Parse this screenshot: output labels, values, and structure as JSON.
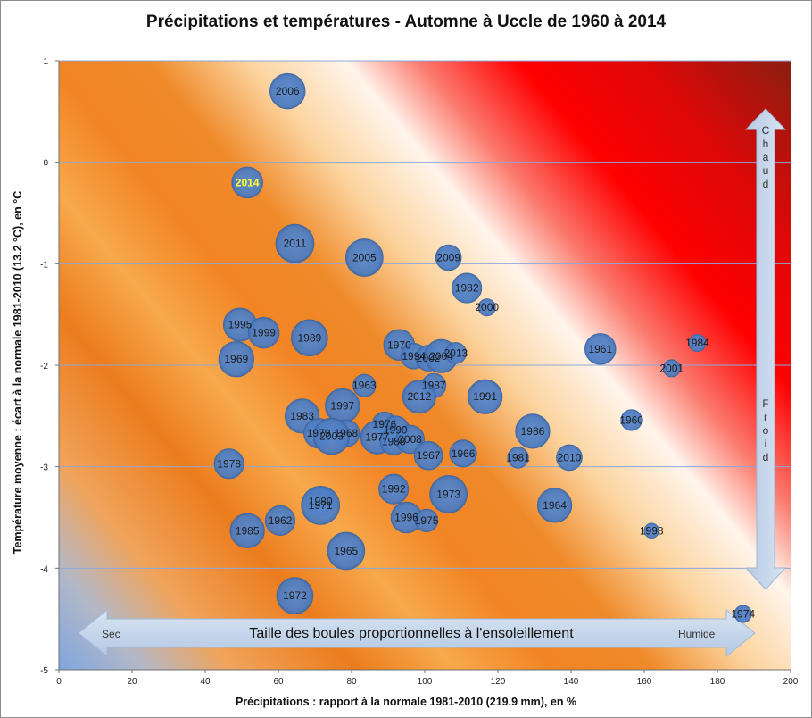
{
  "chart_data": {
    "type": "scatter",
    "subtype": "bubble",
    "title": "Précipitations et températures - Automne à Uccle de 1960 à 2014",
    "xlabel": "Précipitations : rapport à la normale 1981-2010 (219.9 mm), en %",
    "ylabel": "Température moyenne : écart à la normale 1981-2010 (13.2 °C), en °C",
    "xlim": [
      0,
      200
    ],
    "ylim": [
      -5,
      1
    ],
    "xticks": [
      "0",
      "20",
      "40",
      "60",
      "80",
      "100",
      "120",
      "140",
      "160",
      "180",
      "200"
    ],
    "yticks": [
      "-5",
      "-4",
      "-3",
      "-2",
      "-1",
      "0",
      "1"
    ],
    "horizontal_gridlines": true,
    "highlight_label": "2014",
    "bubble_color": "#4f7fc4",
    "highlight_color": "#ffff33",
    "points": [
      {
        "label": "2006",
        "x": 62.5,
        "y": 0.7,
        "size": 0.85
      },
      {
        "label": "2014",
        "x": 51.5,
        "y": -0.2,
        "size": 0.65
      },
      {
        "label": "2011",
        "x": 64.5,
        "y": -0.8,
        "size": 1.0
      },
      {
        "label": "2005",
        "x": 83.5,
        "y": -0.94,
        "size": 0.95
      },
      {
        "label": "2009",
        "x": 106.5,
        "y": -0.94,
        "size": 0.45
      },
      {
        "label": "1982",
        "x": 111.5,
        "y": -1.24,
        "size": 0.6
      },
      {
        "label": "2000",
        "x": 117,
        "y": -1.43,
        "size": 0.2
      },
      {
        "label": "1995",
        "x": 49.5,
        "y": -1.6,
        "size": 0.75
      },
      {
        "label": "1999",
        "x": 56,
        "y": -1.68,
        "size": 0.65
      },
      {
        "label": "1989",
        "x": 68.5,
        "y": -1.73,
        "size": 0.9
      },
      {
        "label": "1970",
        "x": 93,
        "y": -1.8,
        "size": 0.65
      },
      {
        "label": "1994",
        "x": 97,
        "y": -1.91,
        "size": 0.45
      },
      {
        "label": "2002",
        "x": 101,
        "y": -1.93,
        "size": 0.45
      },
      {
        "label": "2004",
        "x": 104.5,
        "y": -1.91,
        "size": 0.75
      },
      {
        "label": "2013",
        "x": 108.5,
        "y": -1.88,
        "size": 0.3
      },
      {
        "label": "1961",
        "x": 148,
        "y": -1.84,
        "size": 0.65
      },
      {
        "label": "1984",
        "x": 174.5,
        "y": -1.78,
        "size": 0.2
      },
      {
        "label": "1969",
        "x": 48.5,
        "y": -1.94,
        "size": 0.85
      },
      {
        "label": "2001",
        "x": 167.5,
        "y": -2.03,
        "size": 0.2
      },
      {
        "label": "1963",
        "x": 83.5,
        "y": -2.2,
        "size": 0.35
      },
      {
        "label": "1987",
        "x": 102.5,
        "y": -2.2,
        "size": 0.4
      },
      {
        "label": "2012",
        "x": 98.5,
        "y": -2.31,
        "size": 0.75
      },
      {
        "label": "1991",
        "x": 116.5,
        "y": -2.31,
        "size": 0.8
      },
      {
        "label": "1997",
        "x": 77.5,
        "y": -2.4,
        "size": 0.8
      },
      {
        "label": "1983",
        "x": 66.5,
        "y": -2.5,
        "size": 0.8
      },
      {
        "label": "1976",
        "x": 89,
        "y": -2.58,
        "size": 0.4
      },
      {
        "label": "1990",
        "x": 92,
        "y": -2.64,
        "size": 0.55
      },
      {
        "label": "1960",
        "x": 156.5,
        "y": -2.54,
        "size": 0.3
      },
      {
        "label": "1986",
        "x": 129.5,
        "y": -2.65,
        "size": 0.8
      },
      {
        "label": "1979",
        "x": 71,
        "y": -2.67,
        "size": 0.6
      },
      {
        "label": "1968",
        "x": 78.5,
        "y": -2.67,
        "size": 0.5
      },
      {
        "label": "2003",
        "x": 74.5,
        "y": -2.7,
        "size": 0.9
      },
      {
        "label": "1977",
        "x": 87,
        "y": -2.71,
        "size": 0.75
      },
      {
        "label": "1988",
        "x": 91.5,
        "y": -2.75,
        "size": 0.5
      },
      {
        "label": "2008",
        "x": 96,
        "y": -2.73,
        "size": 0.55
      },
      {
        "label": "1967",
        "x": 101,
        "y": -2.89,
        "size": 0.55
      },
      {
        "label": "1966",
        "x": 110.5,
        "y": -2.87,
        "size": 0.5
      },
      {
        "label": "1981",
        "x": 125.5,
        "y": -2.91,
        "size": 0.3
      },
      {
        "label": "2010",
        "x": 139.5,
        "y": -2.91,
        "size": 0.45
      },
      {
        "label": "1978",
        "x": 46.5,
        "y": -2.97,
        "size": 0.6
      },
      {
        "label": "1992",
        "x": 91.5,
        "y": -3.22,
        "size": 0.6
      },
      {
        "label": "1973",
        "x": 106.5,
        "y": -3.27,
        "size": 0.95
      },
      {
        "label": "1980",
        "x": 71.5,
        "y": -3.34,
        "size": 0.55
      },
      {
        "label": "1971",
        "x": 71.5,
        "y": -3.38,
        "size": 1.0
      },
      {
        "label": "1964",
        "x": 135.5,
        "y": -3.38,
        "size": 0.8
      },
      {
        "label": "1962",
        "x": 60.5,
        "y": -3.53,
        "size": 0.6
      },
      {
        "label": "1996",
        "x": 95,
        "y": -3.5,
        "size": 0.65
      },
      {
        "label": "1975",
        "x": 100.5,
        "y": -3.53,
        "size": 0.35
      },
      {
        "label": "1985",
        "x": 51.5,
        "y": -3.63,
        "size": 0.8
      },
      {
        "label": "1998",
        "x": 162,
        "y": -3.63,
        "size": 0.15
      },
      {
        "label": "1965",
        "x": 78.5,
        "y": -3.83,
        "size": 0.95
      },
      {
        "label": "1972",
        "x": 64.5,
        "y": -4.27,
        "size": 0.9
      },
      {
        "label": "1974",
        "x": 187,
        "y": -4.45,
        "size": 0.2
      }
    ],
    "annotations": {
      "chaud": "Chaud",
      "froid": "Froid",
      "sec": "Sec",
      "humide": "Humide",
      "bubble_size_note": "Taille des boules proportionnelles à l'ensoleillement"
    }
  }
}
